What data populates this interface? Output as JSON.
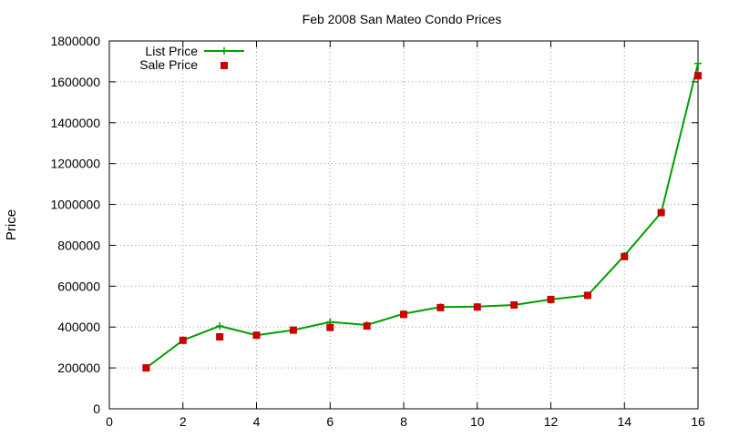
{
  "chart_data": {
    "type": "line",
    "title": "Feb 2008 San Mateo Condo Prices",
    "xlabel": "",
    "ylabel": "Price",
    "xlim": [
      0,
      16
    ],
    "ylim": [
      0,
      1800000
    ],
    "x_ticks": [
      0,
      2,
      4,
      6,
      8,
      10,
      12,
      14,
      16
    ],
    "y_ticks": [
      0,
      200000,
      400000,
      600000,
      800000,
      1000000,
      1200000,
      1400000,
      1600000,
      1800000
    ],
    "grid": true,
    "legend_position": "top-left",
    "series": [
      {
        "name": "List Price",
        "style": "line-with-plus-markers",
        "color": "#00a000",
        "x": [
          1,
          2,
          3,
          4,
          5,
          6,
          7,
          8,
          9,
          10,
          11,
          12,
          13,
          14,
          15,
          16
        ],
        "values": [
          200000,
          335000,
          405000,
          360000,
          385000,
          425000,
          410000,
          465000,
          498000,
          500000,
          508000,
          535000,
          555000,
          750000,
          960000,
          1690000
        ]
      },
      {
        "name": "Sale Price",
        "style": "square-markers",
        "color": "#cc0000",
        "x": [
          1,
          2,
          3,
          4,
          5,
          6,
          7,
          8,
          9,
          10,
          11,
          12,
          13,
          14,
          15,
          16
        ],
        "values": [
          200000,
          335000,
          352000,
          360000,
          385000,
          398000,
          405000,
          462000,
          495000,
          498000,
          508000,
          535000,
          555000,
          745000,
          960000,
          1630000
        ]
      }
    ]
  }
}
